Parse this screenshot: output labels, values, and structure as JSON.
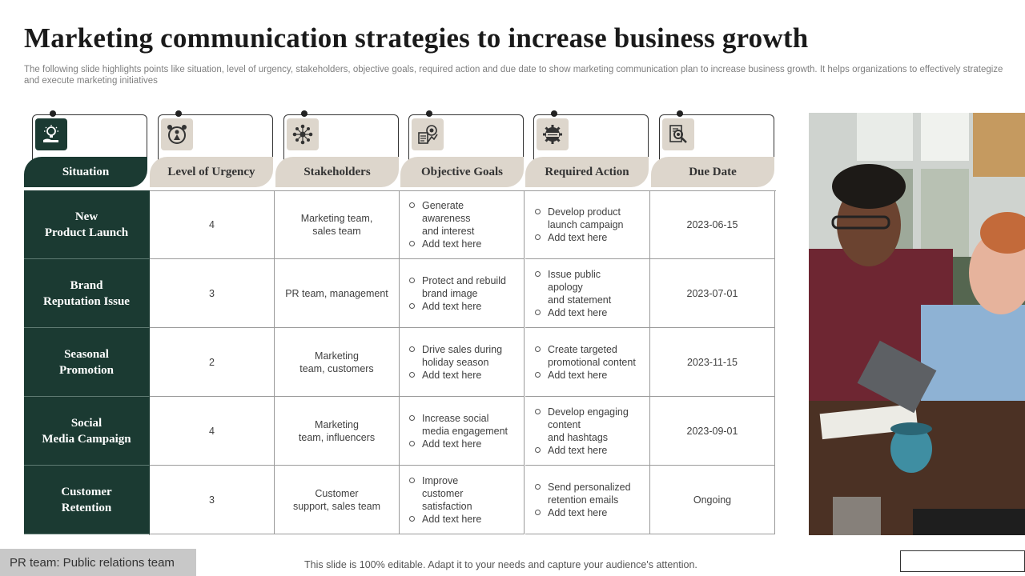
{
  "title": "Marketing communication  strategies to increase business growth",
  "subtitle": "The following slide highlights points like situation, level of urgency,  stakeholders, objective goals, required action and due date to show marketing communication plan to increase business growth. It helps organizations to effectively strategize and execute marketing initiatives",
  "columns": [
    {
      "label": "Situation",
      "icon": "lightbulb-hand-icon"
    },
    {
      "label": "Level of Urgency",
      "icon": "alarm-clock-person-icon"
    },
    {
      "label": "Stakeholders",
      "icon": "network-people-icon"
    },
    {
      "label": "Objective Goals",
      "icon": "target-chart-icon"
    },
    {
      "label": "Required Action",
      "icon": "gear-badge-icon"
    },
    {
      "label": "Due Date",
      "icon": "search-document-icon"
    }
  ],
  "rows": [
    {
      "situation": "New\nProduct  Launch",
      "urgency": "4",
      "stakeholders": "Marketing team,\nsales team",
      "goals": [
        "Generate\nawareness\nand interest",
        "Add text here"
      ],
      "actions": [
        "Develop  product\nlaunch campaign",
        "Add text here"
      ],
      "due": "2023-06-15"
    },
    {
      "situation": "Brand\nReputation Issue",
      "urgency": "3",
      "stakeholders": "PR team, management",
      "goals": [
        "Protect and rebuild\nbrand image",
        "Add text here"
      ],
      "actions": [
        "Issue public\napology\nand statement",
        "Add text here"
      ],
      "due": "2023-07-01"
    },
    {
      "situation": "Seasonal\nPromotion",
      "urgency": "2",
      "stakeholders": "Marketing\nteam, customers",
      "goals": [
        "Drive  sales during\nholiday season",
        "Add text here"
      ],
      "actions": [
        "Create targeted\npromotional content",
        "Add text here"
      ],
      "due": "2023-11-15"
    },
    {
      "situation": "Social\nMedia Campaign",
      "urgency": "4",
      "stakeholders": "Marketing\nteam, influencers",
      "goals": [
        "Increase social\nmedia engagement",
        "Add text here"
      ],
      "actions": [
        "Develop  engaging\ncontent\nand hashtags",
        "Add text here"
      ],
      "due": "2023-09-01"
    },
    {
      "situation": "Customer\nRetention",
      "urgency": "3",
      "stakeholders": "Customer\nsupport, sales team",
      "goals": [
        "Improve\ncustomer\nsatisfaction",
        "Add text here"
      ],
      "actions": [
        "Send personalized\nretention emails",
        "Add text here"
      ],
      "due": "Ongoing"
    }
  ],
  "footnote": "PR team: Public relations team",
  "footer": "This slide is 100% editable. Adapt it to your needs and capture your audience's attention.",
  "colors": {
    "dark_green": "#1b3a32",
    "beige": "#ddd6cc",
    "icon_bg": "#ddd6cc"
  }
}
